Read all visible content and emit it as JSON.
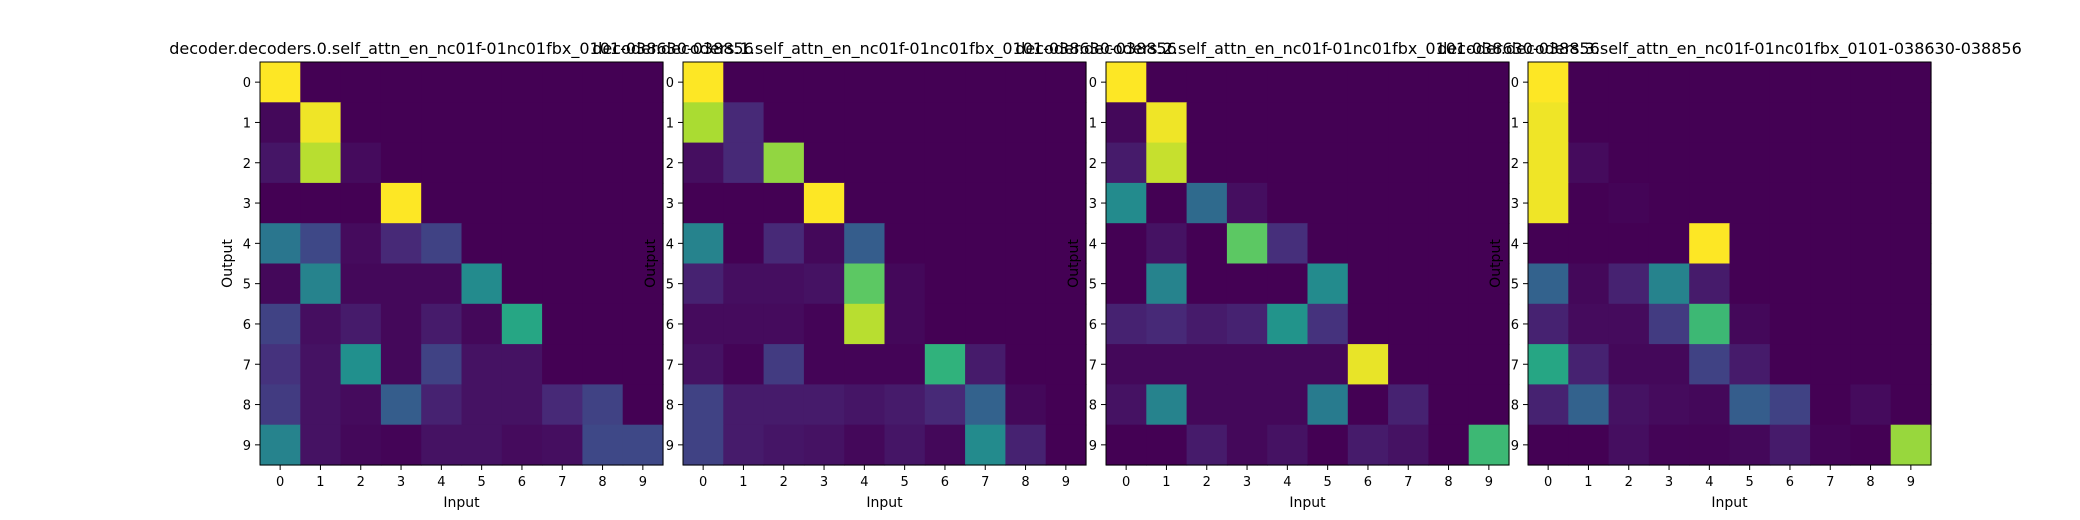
{
  "chart_data": [
    {
      "type": "heatmap",
      "title": "decoder.decoders.0.self_attn_en_nc01f-01nc01fbx_0101-038630-038856",
      "xlabel": "Input",
      "ylabel": "Output",
      "x_ticks": [
        "0",
        "1",
        "2",
        "3",
        "4",
        "5",
        "6",
        "7",
        "8",
        "9"
      ],
      "y_ticks": [
        "0",
        "1",
        "2",
        "3",
        "4",
        "5",
        "6",
        "7",
        "8",
        "9"
      ],
      "colormap": "viridis",
      "vrange": [
        0,
        1
      ],
      "values": [
        [
          1.0,
          0.0,
          0.0,
          0.0,
          0.0,
          0.0,
          0.0,
          0.0,
          0.0,
          0.0
        ],
        [
          0.02,
          0.98,
          0.0,
          0.0,
          0.0,
          0.0,
          0.0,
          0.0,
          0.0,
          0.0
        ],
        [
          0.06,
          0.9,
          0.03,
          0.0,
          0.0,
          0.0,
          0.0,
          0.0,
          0.0,
          0.0
        ],
        [
          0.0,
          0.0,
          0.0,
          1.0,
          0.0,
          0.0,
          0.0,
          0.0,
          0.0,
          0.0
        ],
        [
          0.4,
          0.22,
          0.03,
          0.12,
          0.2,
          0.0,
          0.0,
          0.0,
          0.0,
          0.0
        ],
        [
          0.02,
          0.45,
          0.02,
          0.02,
          0.02,
          0.48,
          0.0,
          0.0,
          0.0,
          0.0
        ],
        [
          0.2,
          0.04,
          0.08,
          0.02,
          0.08,
          0.02,
          0.6,
          0.0,
          0.0,
          0.0
        ],
        [
          0.15,
          0.05,
          0.5,
          0.02,
          0.2,
          0.05,
          0.05,
          0.0,
          0.0,
          0.0
        ],
        [
          0.18,
          0.05,
          0.03,
          0.3,
          0.1,
          0.05,
          0.05,
          0.12,
          0.2,
          0.0
        ],
        [
          0.45,
          0.05,
          0.02,
          0.01,
          0.05,
          0.05,
          0.03,
          0.04,
          0.22,
          0.22
        ]
      ]
    },
    {
      "type": "heatmap",
      "title": "decoder.decoders.1.self_attn_en_nc01f-01nc01fbx_0101-038630-038856",
      "xlabel": "Input",
      "ylabel": "Output",
      "x_ticks": [
        "0",
        "1",
        "2",
        "3",
        "4",
        "5",
        "6",
        "7",
        "8",
        "9"
      ],
      "y_ticks": [
        "0",
        "1",
        "2",
        "3",
        "4",
        "5",
        "6",
        "7",
        "8",
        "9"
      ],
      "colormap": "viridis",
      "vrange": [
        0,
        1
      ],
      "values": [
        [
          1.0,
          0.0,
          0.0,
          0.0,
          0.0,
          0.0,
          0.0,
          0.0,
          0.0,
          0.0
        ],
        [
          0.88,
          0.12,
          0.0,
          0.0,
          0.0,
          0.0,
          0.0,
          0.0,
          0.0,
          0.0
        ],
        [
          0.04,
          0.12,
          0.84,
          0.0,
          0.0,
          0.0,
          0.0,
          0.0,
          0.0,
          0.0
        ],
        [
          0.0,
          0.0,
          0.0,
          1.0,
          0.0,
          0.0,
          0.0,
          0.0,
          0.0,
          0.0
        ],
        [
          0.45,
          0.0,
          0.12,
          0.02,
          0.3,
          0.0,
          0.0,
          0.0,
          0.0,
          0.0
        ],
        [
          0.1,
          0.04,
          0.04,
          0.05,
          0.75,
          0.02,
          0.0,
          0.0,
          0.0,
          0.0
        ],
        [
          0.03,
          0.03,
          0.03,
          0.01,
          0.9,
          0.02,
          0.0,
          0.0,
          0.0,
          0.0
        ],
        [
          0.05,
          0.01,
          0.18,
          0.01,
          0.01,
          0.01,
          0.65,
          0.08,
          0.0,
          0.0
        ],
        [
          0.2,
          0.08,
          0.08,
          0.08,
          0.06,
          0.08,
          0.12,
          0.32,
          0.02,
          0.0
        ],
        [
          0.2,
          0.08,
          0.06,
          0.05,
          0.02,
          0.06,
          0.02,
          0.48,
          0.1,
          0.0
        ]
      ]
    },
    {
      "type": "heatmap",
      "title": "decoder.decoders.2.self_attn_en_nc01f-01nc01fbx_0101-038630-038856",
      "xlabel": "Input",
      "ylabel": "Output",
      "x_ticks": [
        "0",
        "1",
        "2",
        "3",
        "4",
        "5",
        "6",
        "7",
        "8",
        "9"
      ],
      "y_ticks": [
        "0",
        "1",
        "2",
        "3",
        "4",
        "5",
        "6",
        "7",
        "8",
        "9"
      ],
      "colormap": "viridis",
      "vrange": [
        0,
        1
      ],
      "values": [
        [
          1.0,
          0.0,
          0.0,
          0.0,
          0.0,
          0.0,
          0.0,
          0.0,
          0.0,
          0.0
        ],
        [
          0.02,
          0.98,
          0.0,
          0.0,
          0.0,
          0.0,
          0.0,
          0.0,
          0.0,
          0.0
        ],
        [
          0.08,
          0.92,
          0.0,
          0.0,
          0.0,
          0.0,
          0.0,
          0.0,
          0.0,
          0.0
        ],
        [
          0.48,
          0.0,
          0.35,
          0.04,
          0.0,
          0.0,
          0.0,
          0.0,
          0.0,
          0.0
        ],
        [
          0.0,
          0.05,
          0.0,
          0.75,
          0.14,
          0.0,
          0.0,
          0.0,
          0.0,
          0.0
        ],
        [
          0.0,
          0.45,
          0.0,
          0.0,
          0.0,
          0.48,
          0.0,
          0.0,
          0.0,
          0.0
        ],
        [
          0.1,
          0.12,
          0.08,
          0.1,
          0.52,
          0.15,
          0.0,
          0.0,
          0.0,
          0.0
        ],
        [
          0.02,
          0.02,
          0.02,
          0.02,
          0.02,
          0.02,
          0.97,
          0.0,
          0.0,
          0.0
        ],
        [
          0.05,
          0.45,
          0.02,
          0.02,
          0.02,
          0.42,
          0.0,
          0.1,
          0.0,
          0.0
        ],
        [
          0.0,
          0.0,
          0.08,
          0.02,
          0.05,
          0.0,
          0.08,
          0.05,
          0.0,
          0.68
        ]
      ]
    },
    {
      "type": "heatmap",
      "title": "decoder.decoders.3.self_attn_en_nc01f-01nc01fbx_0101-038630-038856",
      "xlabel": "Input",
      "ylabel": "Output",
      "x_ticks": [
        "0",
        "1",
        "2",
        "3",
        "4",
        "5",
        "6",
        "7",
        "8",
        "9"
      ],
      "y_ticks": [
        "0",
        "1",
        "2",
        "3",
        "4",
        "5",
        "6",
        "7",
        "8",
        "9"
      ],
      "colormap": "viridis",
      "vrange": [
        0,
        1
      ],
      "values": [
        [
          1.0,
          0.0,
          0.0,
          0.0,
          0.0,
          0.0,
          0.0,
          0.0,
          0.0,
          0.0
        ],
        [
          0.98,
          0.0,
          0.0,
          0.0,
          0.0,
          0.0,
          0.0,
          0.0,
          0.0,
          0.0
        ],
        [
          0.98,
          0.03,
          0.0,
          0.0,
          0.0,
          0.0,
          0.0,
          0.0,
          0.0,
          0.0
        ],
        [
          0.98,
          0.0,
          0.01,
          0.0,
          0.0,
          0.0,
          0.0,
          0.0,
          0.0,
          0.0
        ],
        [
          0.0,
          0.0,
          0.0,
          0.0,
          1.0,
          0.0,
          0.0,
          0.0,
          0.0,
          0.0
        ],
        [
          0.32,
          0.02,
          0.1,
          0.45,
          0.08,
          0.0,
          0.0,
          0.0,
          0.0,
          0.0
        ],
        [
          0.1,
          0.03,
          0.03,
          0.18,
          0.68,
          0.02,
          0.0,
          0.0,
          0.0,
          0.0
        ],
        [
          0.6,
          0.1,
          0.02,
          0.02,
          0.2,
          0.08,
          0.0,
          0.0,
          0.0,
          0.0
        ],
        [
          0.1,
          0.32,
          0.05,
          0.03,
          0.02,
          0.3,
          0.2,
          0.0,
          0.03,
          0.0
        ],
        [
          0.0,
          0.0,
          0.04,
          0.01,
          0.01,
          0.02,
          0.08,
          0.01,
          0.0,
          0.85
        ]
      ]
    }
  ]
}
